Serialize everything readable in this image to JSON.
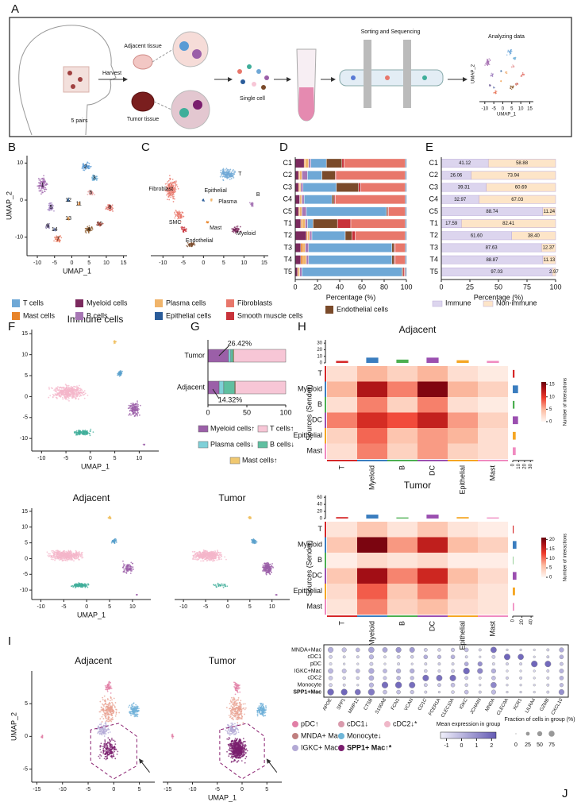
{
  "figure": {
    "panel_labels": [
      "A",
      "B",
      "C",
      "D",
      "E",
      "F",
      "G",
      "H",
      "I",
      "J"
    ],
    "schematic": {
      "harvest": "Harvest",
      "adjacent": "Adjacent tissue",
      "tumor": "Tumor tissue",
      "pairs": "5 pairs",
      "single_cell": "Single cell",
      "sorting": "Sorting and Sequencing",
      "analyzing": "Analyzing data"
    }
  },
  "chart_data": [
    {
      "type": "scatter",
      "xlabel": "UMAP_1",
      "ylabel": "UMAP_2",
      "xlim": [
        -13,
        17
      ],
      "ylim": [
        -15,
        12
      ],
      "xticks": [
        -10,
        -5,
        0,
        5,
        10,
        15
      ]
    },
    {
      "type": "scatter",
      "xlabel": "UMAP_1",
      "ylabel": "UMAP_2",
      "xlim": [
        -13,
        16
      ],
      "ylim": [
        -15,
        12
      ],
      "xticks": [
        -10,
        -5,
        0,
        5,
        10,
        15
      ],
      "yticks": [
        -10,
        0,
        10
      ],
      "annotations": [
        "1",
        "2",
        "3",
        "4",
        "5",
        "6",
        "7",
        "8",
        "9",
        "10",
        "11",
        "12",
        "13",
        "14"
      ]
    },
    {
      "type": "scatter",
      "xlim": [
        -13,
        16
      ],
      "ylim": [
        -15,
        12
      ],
      "xticks": [
        -10,
        -5,
        0,
        5,
        10,
        15
      ],
      "annotations": [
        "Fibroblast",
        "T",
        "Epithelial",
        "Plasma",
        "B",
        "SMC",
        "Mast",
        "Myeloid",
        "Endothelial"
      ]
    },
    {
      "type": "bar",
      "orientation": "horizontal",
      "stacked": true,
      "xlabel": "Percentage (%)",
      "xlim": [
        0,
        100
      ],
      "xticks": [
        0,
        20,
        40,
        60,
        80,
        100
      ],
      "categories": [
        "C1",
        "C2",
        "C3",
        "C4",
        "C5",
        "T1",
        "T2",
        "T3",
        "T4",
        "T5"
      ],
      "series": [
        {
          "name": "Myeloid cells",
          "color": "#7b2a5e",
          "values": [
            8,
            3,
            3,
            4,
            3,
            5,
            10,
            5,
            5,
            2
          ]
        },
        {
          "name": "Mast cells",
          "color": "#e8842a",
          "values": [
            1,
            1,
            1,
            1,
            1,
            1,
            1,
            2,
            2,
            1
          ]
        },
        {
          "name": "Plasma cells",
          "color": "#f0b46a",
          "values": [
            3,
            2,
            1,
            1,
            2,
            3,
            2,
            2,
            3,
            1
          ]
        },
        {
          "name": "B cells",
          "color": "#a777b5",
          "values": [
            2,
            5,
            2,
            2,
            4,
            2,
            2,
            3,
            2,
            2
          ]
        },
        {
          "name": "T cells",
          "color": "#6fa8d6",
          "values": [
            14,
            13,
            30,
            25,
            72,
            5,
            30,
            75,
            75,
            90
          ]
        },
        {
          "name": "Endothelial cells",
          "color": "#7a4a2a",
          "values": [
            14,
            12,
            20,
            2,
            1,
            22,
            6,
            2,
            2,
            1
          ]
        },
        {
          "name": "Smooth muscle cells",
          "color": "#c8323a",
          "values": [
            2,
            1,
            2,
            1,
            1,
            12,
            3,
            1,
            1,
            1
          ]
        },
        {
          "name": "Fibroblasts",
          "color": "#e8776b",
          "values": [
            55,
            62,
            40,
            63,
            15,
            49,
            45,
            9,
            9,
            1
          ]
        },
        {
          "name": "Epithelial cells",
          "color": "#2a5c9a",
          "values": [
            1,
            1,
            1,
            1,
            1,
            1,
            1,
            1,
            1,
            1
          ]
        }
      ]
    },
    {
      "type": "bar",
      "orientation": "horizontal",
      "stacked": true,
      "xlabel": "Percentage (%)",
      "xlim": [
        0,
        100
      ],
      "xticks": [
        0,
        25,
        50,
        75,
        100
      ],
      "categories": [
        "C1",
        "C2",
        "C3",
        "C4",
        "C5",
        "T1",
        "T2",
        "T3",
        "T4",
        "T5"
      ],
      "series": [
        {
          "name": "Immune",
          "color": "#dcd5ee",
          "values": [
            41.12,
            26.06,
            39.31,
            32.97,
            88.74,
            17.59,
            61.6,
            87.63,
            88.87,
            97.03
          ],
          "value_labels": [
            "41.12",
            "26.06",
            "39.31",
            "32.97",
            "88.74",
            "17.59",
            "61.60",
            "87.63",
            "88.87",
            "97.03"
          ]
        },
        {
          "name": "Non-immune",
          "color": "#fde5c8",
          "values": [
            58.88,
            73.94,
            60.69,
            67.03,
            11.24,
            82.41,
            38.4,
            12.37,
            11.13,
            2.97
          ],
          "value_labels": [
            "58.88",
            "73.94",
            "60.69",
            "67.03",
            "11.24",
            "82.41",
            "38.40",
            "12.37",
            "11.13",
            "2.97"
          ]
        }
      ]
    },
    {
      "type": "scatter",
      "title": "Immune cells",
      "xlabel": "UMAP_1",
      "xlim": [
        -12,
        14
      ],
      "ylim": [
        -13,
        16
      ],
      "xticks": [
        -10,
        -5,
        0,
        5,
        10
      ],
      "yticks": [
        -10,
        -5,
        0,
        5,
        10,
        15
      ]
    },
    {
      "type": "scatter",
      "title": "Adjacent",
      "xlabel": "UMAP_1",
      "xlim": [
        -12,
        14
      ],
      "ylim": [
        -13,
        16
      ],
      "xticks": [
        -10,
        -5,
        0,
        5,
        10
      ],
      "yticks": [
        -10,
        -5,
        0,
        5,
        10,
        15
      ]
    },
    {
      "type": "scatter",
      "title": "Tumor",
      "xlim": [
        -12,
        14
      ],
      "ylim": [
        -13,
        16
      ],
      "xticks": [
        -10,
        -5,
        0,
        5,
        10
      ]
    },
    {
      "type": "bar",
      "orientation": "horizontal",
      "stacked": true,
      "xlim": [
        0,
        100
      ],
      "xticks": [
        0,
        50,
        100
      ],
      "categories": [
        "Tumor",
        "Adjacent"
      ],
      "series": [
        {
          "name": "Myeloid cells↑",
          "color": "#9b5fa8",
          "values": [
            26.42,
            14.32
          ],
          "value_labels": [
            "26.42%",
            "14.32%"
          ]
        },
        {
          "name": "Plasma cells↓",
          "color": "#7fd0d8",
          "values": [
            3,
            6
          ]
        },
        {
          "name": "B cells↓",
          "color": "#5fbfa0",
          "values": [
            3,
            14
          ]
        },
        {
          "name": "Mast cells↑",
          "color": "#f0c870",
          "values": [
            1,
            1
          ]
        },
        {
          "name": "T cells↑",
          "color": "#f7c6d6",
          "values": [
            66.58,
            64.68
          ]
        }
      ]
    },
    {
      "type": "heatmap",
      "title": "Adjacent",
      "ylabel": "Sources (Sender)",
      "rows": [
        "T",
        "Myeloid",
        "B",
        "DC",
        "Epithelial",
        "Mast"
      ],
      "columns": [
        "T",
        "Myeloid",
        "B",
        "DC",
        "Epithelial",
        "Mast"
      ],
      "group_colors": [
        "#d62728",
        "#3a7dbf",
        "#4caf50",
        "#9b4fb0",
        "#f5a623",
        "#f08ac0"
      ],
      "values": [
        [
          2,
          5,
          3,
          5,
          2,
          1
        ],
        [
          5,
          13,
          7,
          15,
          5,
          3
        ],
        [
          2,
          7,
          3,
          7,
          2,
          1
        ],
        [
          7,
          11,
          9,
          12,
          6,
          3
        ],
        [
          3,
          8,
          4,
          6,
          5,
          2
        ],
        [
          2,
          7,
          3,
          6,
          3,
          2
        ]
      ],
      "top_values": [
        3,
        8,
        5,
        8,
        4,
        3
      ],
      "top_lim": [
        0,
        35
      ],
      "top_ticks": [
        0,
        10,
        20,
        30
      ],
      "right_values": [
        3,
        9,
        3,
        9,
        5,
        5
      ],
      "right_lim": [
        0,
        35
      ],
      "right_ticks": [
        0,
        10,
        20,
        30
      ],
      "colorbar_label": "Number of interactions",
      "clim": [
        0,
        16
      ],
      "cticks": [
        0,
        5,
        10,
        15
      ]
    },
    {
      "type": "heatmap",
      "title": "Tumor",
      "ylabel": "Sources (Sender)",
      "rows": [
        "T",
        "Myeloid",
        "B",
        "DC",
        "Epithelial",
        "Mast"
      ],
      "columns": [
        "T",
        "Myeloid",
        "B",
        "DC",
        "Epithelial",
        "Mast"
      ],
      "group_colors": [
        "#d62728",
        "#3a7dbf",
        "#4caf50",
        "#9b4fb0",
        "#f5a623",
        "#f08ac0"
      ],
      "values": [
        [
          2,
          5,
          2,
          5,
          2,
          1
        ],
        [
          5,
          20,
          8,
          16,
          6,
          4
        ],
        [
          1,
          3,
          2,
          3,
          1,
          1
        ],
        [
          5,
          18,
          9,
          15,
          6,
          3
        ],
        [
          3,
          11,
          5,
          9,
          4,
          2
        ],
        [
          2,
          9,
          4,
          6,
          3,
          2
        ]
      ],
      "top_values": [
        4,
        11,
        3,
        11,
        4,
        3
      ],
      "top_lim": [
        0,
        65
      ],
      "top_ticks": [
        0,
        20,
        40,
        60
      ],
      "right_values": [
        2,
        8,
        1,
        8,
        5,
        3
      ],
      "right_lim": [
        0,
        45
      ],
      "right_ticks": [
        0,
        20,
        40
      ],
      "colorbar_label": "Number of interactions",
      "clim": [
        0,
        21
      ],
      "cticks": [
        0,
        5,
        10,
        15,
        20
      ]
    },
    {
      "type": "scatter",
      "title": "Adjacent",
      "ylabel": "UMAP_2",
      "xlim": [
        -16,
        8
      ],
      "ylim": [
        -7,
        10
      ],
      "xticks": [
        -15,
        -10,
        -5,
        0,
        5
      ],
      "yticks": [
        -5,
        0,
        5
      ]
    },
    {
      "type": "scatter",
      "title": "Tumor",
      "xlabel": "UMAP_1",
      "xlim": [
        -16,
        8
      ],
      "ylim": [
        -7,
        10
      ],
      "xticks": [
        -15,
        -10,
        -5,
        0,
        5
      ]
    },
    {
      "type": "dotplot",
      "rows": [
        "MNDA+Mac",
        "cDC1",
        "pDC",
        "IGKC+Mac",
        "cDC2",
        "Monocyte",
        "SPP1+Mac"
      ],
      "genes": [
        "APOE",
        "SPP1",
        "MMP12",
        "CTSB",
        "S100A8",
        "FCN1",
        "VCAN",
        "CD1C",
        "FCER1A",
        "CLEC10A",
        "IGKC",
        "JCHAIN",
        "MNDA",
        "CLEC9A",
        "XCR1",
        "LILRA4",
        "GZMB",
        "CXCL10"
      ],
      "expression": [
        [
          0.2,
          -0.2,
          0,
          0.5,
          0.4,
          0.8,
          0.7,
          -0.5,
          -0.6,
          -0.3,
          -0.2,
          -0.7,
          1.8,
          -0.8,
          -0.8,
          -0.9,
          -0.7,
          0.3
        ],
        [
          -0.6,
          -0.7,
          -0.6,
          0,
          -0.7,
          -0.4,
          -0.5,
          0.2,
          0,
          0.1,
          -0.6,
          -0.8,
          -0.5,
          2,
          1.9,
          -0.8,
          -0.5,
          0.2
        ],
        [
          -0.8,
          -0.8,
          -0.8,
          -0.5,
          -0.8,
          -0.7,
          -0.7,
          -0.6,
          -0.5,
          -0.6,
          0.3,
          1,
          -0.7,
          -0.6,
          -0.6,
          2,
          1.9,
          -0.3
        ],
        [
          0,
          -0.2,
          -0.1,
          0.3,
          0,
          0.1,
          0.2,
          -0.5,
          -0.6,
          -0.4,
          1.9,
          1.2,
          0.2,
          -0.8,
          -0.8,
          -0.8,
          -0.6,
          0.1
        ],
        [
          -0.4,
          -0.6,
          -0.5,
          0.2,
          -0.3,
          0,
          -0.1,
          1.8,
          1.7,
          1.8,
          -0.4,
          -0.7,
          -0.2,
          -0.5,
          -0.5,
          -0.8,
          -0.6,
          0.1
        ],
        [
          -0.6,
          -0.7,
          -0.8,
          0,
          1.8,
          1.9,
          1.8,
          -0.4,
          -0.3,
          -0.2,
          -0.5,
          -0.8,
          1.2,
          -0.8,
          -0.8,
          -0.9,
          -0.7,
          -0.1
        ],
        [
          1.9,
          2,
          1.7,
          1.5,
          -0.2,
          -0.3,
          -0.3,
          -0.7,
          -0.8,
          -0.6,
          -0.2,
          -0.7,
          -0.1,
          -0.8,
          -0.8,
          -0.9,
          -0.7,
          1
        ]
      ],
      "fraction": [
        [
          60,
          40,
          30,
          70,
          50,
          60,
          55,
          20,
          15,
          25,
          30,
          10,
          75,
          5,
          5,
          5,
          10,
          40
        ],
        [
          20,
          10,
          10,
          40,
          10,
          20,
          15,
          30,
          25,
          30,
          10,
          5,
          20,
          80,
          70,
          5,
          10,
          30
        ],
        [
          10,
          5,
          5,
          20,
          5,
          10,
          5,
          10,
          10,
          10,
          30,
          40,
          10,
          10,
          10,
          85,
          80,
          20
        ],
        [
          50,
          35,
          30,
          60,
          30,
          40,
          40,
          15,
          10,
          20,
          85,
          60,
          40,
          5,
          5,
          5,
          10,
          35
        ],
        [
          30,
          15,
          15,
          50,
          20,
          30,
          25,
          80,
          75,
          80,
          20,
          10,
          30,
          10,
          10,
          5,
          10,
          30
        ],
        [
          20,
          10,
          5,
          40,
          85,
          90,
          80,
          20,
          20,
          30,
          15,
          5,
          70,
          5,
          5,
          5,
          10,
          25
        ],
        [
          90,
          85,
          70,
          90,
          30,
          30,
          25,
          10,
          5,
          15,
          30,
          10,
          40,
          5,
          5,
          5,
          10,
          60
        ]
      ],
      "color_label": "Mean expression in group",
      "clim": [
        -1.4,
        2.3
      ],
      "cticks": [
        -1,
        0,
        1,
        2
      ],
      "size_label": "Fraction of cells in group (%)",
      "size_ticks": [
        0,
        25,
        50,
        75
      ],
      "groups": [
        {
          "name": "pDC↑",
          "color": "#e17fa6"
        },
        {
          "name": "cDC1↓",
          "color": "#d99aac"
        },
        {
          "name": "cDC2↓*",
          "color": "#efb7c8"
        },
        {
          "name": "MNDA+ Mac↓",
          "color": "#c07f7f"
        },
        {
          "name": "Monocyte↓",
          "color": "#6fb6d8"
        },
        {
          "name": "IGKC+ Mac↓",
          "color": "#b3a9d5"
        },
        {
          "name": "SPP1+ Mac↑*",
          "color": "#7a1e6e"
        }
      ]
    }
  ]
}
